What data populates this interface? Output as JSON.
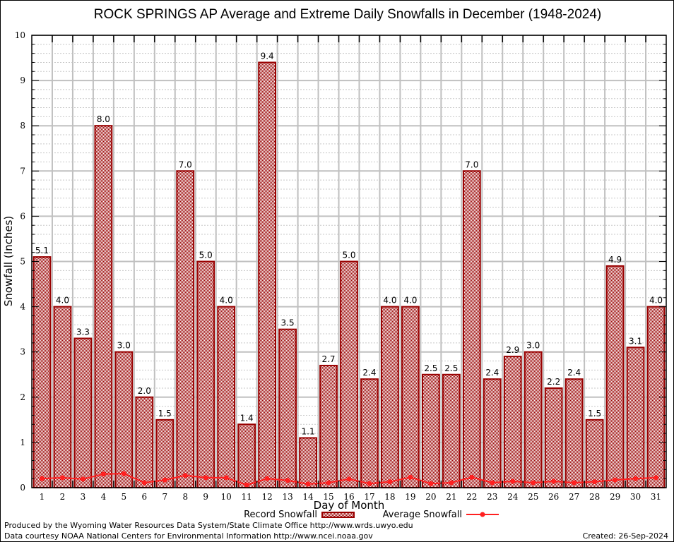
{
  "chart_data": {
    "type": "bar",
    "title": "ROCK SPRINGS AP Average and Extreme Daily Snowfalls in December (1948-2024)",
    "xlabel": "Day of Month",
    "ylabel": "Snowfall (Inches)",
    "ylim": [
      0,
      10
    ],
    "yticks": [
      "0",
      "1",
      "2",
      "3",
      "4",
      "5",
      "6",
      "7",
      "8",
      "9",
      "10"
    ],
    "categories": [
      "1",
      "2",
      "3",
      "4",
      "5",
      "6",
      "7",
      "8",
      "9",
      "10",
      "11",
      "12",
      "13",
      "14",
      "15",
      "16",
      "17",
      "18",
      "19",
      "20",
      "21",
      "22",
      "23",
      "24",
      "25",
      "26",
      "27",
      "28",
      "29",
      "30",
      "31"
    ],
    "grid": true,
    "legend_position": "bottom-center",
    "series": [
      {
        "name": "Record Snowfall",
        "type": "bar",
        "color": "#990000",
        "values": [
          5.1,
          4.0,
          3.3,
          8.0,
          3.0,
          2.0,
          1.5,
          7.0,
          5.0,
          4.0,
          1.4,
          9.4,
          3.5,
          1.1,
          2.7,
          5.0,
          2.4,
          4.0,
          4.0,
          2.5,
          2.5,
          7.0,
          2.4,
          2.9,
          3.0,
          2.2,
          2.4,
          1.5,
          4.9,
          3.1,
          4.0
        ],
        "labels": [
          "5.1",
          "4.0",
          "3.3",
          "8.0",
          "3.0",
          "2.0",
          "1.5",
          "7.0",
          "5.0",
          "4.0",
          "1.4",
          "9.4",
          "3.5",
          "1.1",
          "2.7",
          "5.0",
          "2.4",
          "4.0",
          "4.0",
          "2.5",
          "2.5",
          "7.0",
          "2.4",
          "2.9",
          "3.0",
          "2.2",
          "2.4",
          "1.5",
          "4.9",
          "3.1",
          "4.0"
        ]
      },
      {
        "name": "Average Snowfall",
        "type": "line",
        "color": "#ff2020",
        "values": [
          0.2,
          0.22,
          0.19,
          0.3,
          0.31,
          0.11,
          0.17,
          0.27,
          0.22,
          0.22,
          0.06,
          0.2,
          0.16,
          0.08,
          0.11,
          0.19,
          0.09,
          0.13,
          0.23,
          0.09,
          0.11,
          0.23,
          0.11,
          0.14,
          0.11,
          0.14,
          0.11,
          0.13,
          0.17,
          0.2,
          0.22
        ]
      }
    ]
  },
  "footer": {
    "produced_by": "Produced by the Wyoming Water Resources Data System/State Climate Office http://www.wrds.uwyo.edu",
    "data_courtesy": "Data courtesy NOAA National Centers for Environmental Information http://www.ncei.noaa.gov",
    "created": "Created: 26-Sep-2024"
  }
}
